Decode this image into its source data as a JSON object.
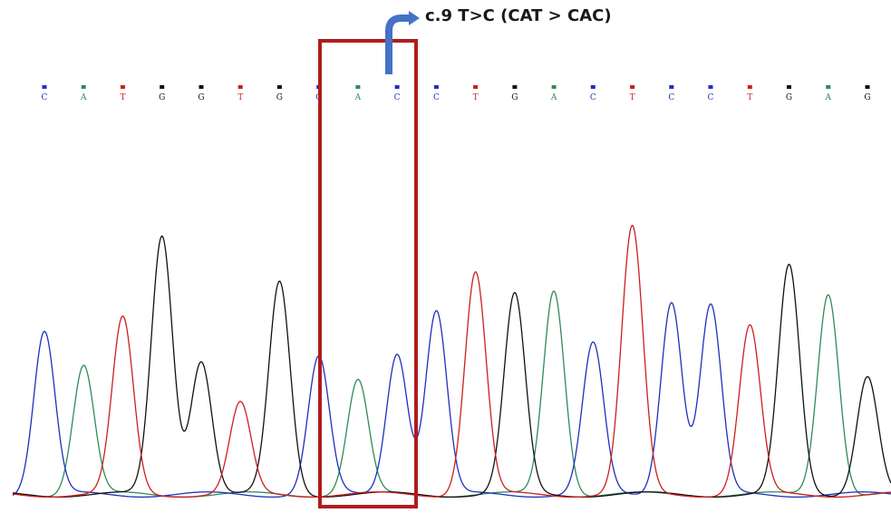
{
  "annotation": {
    "label": "c.9 T>C (CAT > CAC)",
    "box_color": "#b01c1c",
    "arrow_color": "#4472c4"
  },
  "chart_data": {
    "type": "line",
    "title": "",
    "xlabel": "",
    "ylabel": "",
    "grid": false,
    "legend": "none",
    "sequence": [
      "C",
      "A",
      "T",
      "G",
      "G",
      "T",
      "G",
      "C",
      "A",
      "C",
      "C",
      "T",
      "G",
      "A",
      "C",
      "T",
      "C",
      "C",
      "T",
      "G",
      "A",
      "G"
    ],
    "highlighted_indices": [
      7,
      8,
      9
    ],
    "peak_heights": [
      0.63,
      0.5,
      0.68,
      1.0,
      0.52,
      0.35,
      0.82,
      0.53,
      0.44,
      0.55,
      0.71,
      0.86,
      0.77,
      0.79,
      0.58,
      1.03,
      0.75,
      0.73,
      0.65,
      0.88,
      0.78,
      0.46
    ],
    "series": [
      {
        "name": "A",
        "color": "#2e8b57"
      },
      {
        "name": "C",
        "color": "#1f2fbf"
      },
      {
        "name": "G",
        "color": "#111111"
      },
      {
        "name": "T",
        "color": "#cc1f1f"
      }
    ],
    "base_colors": {
      "A": "#2e8b57",
      "C": "#1f2fbf",
      "G": "#111111",
      "T": "#cc1f1f"
    },
    "ylim": [
      0,
      1.05
    ]
  }
}
